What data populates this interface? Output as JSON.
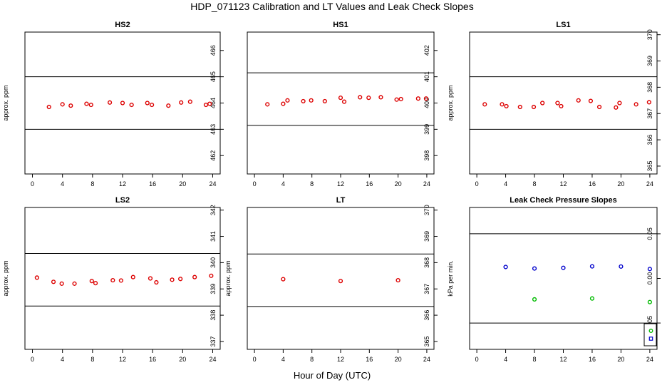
{
  "figure": {
    "title": "HDP_071123  Calibration and LT Values and Leak Check Slopes",
    "xlabel": "Hour of Day (UTC)"
  },
  "colors": {
    "primary": "#dd0000",
    "blue": "#0000cc",
    "green": "#00bb00",
    "line": "#000000"
  },
  "chart_data": [
    {
      "type": "scatter",
      "title": "HS2",
      "ylabel": "approx. ppm",
      "xlim": [
        -1,
        25
      ],
      "xticks": [
        0,
        4,
        8,
        12,
        16,
        20,
        24
      ],
      "ylim": [
        461.3,
        466.7
      ],
      "yticks": [
        462,
        463,
        464,
        465,
        466
      ],
      "hlines": [
        463.0,
        465.0
      ],
      "series": [
        {
          "color": "#dd0000",
          "marker": "circle",
          "x": [
            2.2,
            4.0,
            5.1,
            7.2,
            7.8,
            10.3,
            12.0,
            13.2,
            15.3,
            15.9,
            18.1,
            19.8,
            21.0,
            23.1,
            23.6
          ],
          "y": [
            463.85,
            463.95,
            463.9,
            463.97,
            463.93,
            464.02,
            464.0,
            463.93,
            464.0,
            463.93,
            463.9,
            464.02,
            464.05,
            463.93,
            463.97
          ]
        }
      ]
    },
    {
      "type": "scatter",
      "title": "HS1",
      "ylabel": "",
      "xlim": [
        -1,
        25
      ],
      "xticks": [
        0,
        4,
        8,
        12,
        16,
        20,
        24
      ],
      "ylim": [
        397.3,
        402.7
      ],
      "yticks": [
        398,
        399,
        400,
        401,
        402
      ],
      "hlines": [
        399.15,
        401.15
      ],
      "series": [
        {
          "color": "#dd0000",
          "marker": "circle",
          "x": [
            1.8,
            4.0,
            4.6,
            6.8,
            7.9,
            9.8,
            12.0,
            12.5,
            14.7,
            15.9,
            17.6,
            19.8,
            20.4,
            22.8,
            23.9
          ],
          "y": [
            399.95,
            399.97,
            400.1,
            400.07,
            400.1,
            400.07,
            400.2,
            400.05,
            400.22,
            400.2,
            400.22,
            400.13,
            400.15,
            400.17,
            400.17
          ]
        }
      ]
    },
    {
      "type": "scatter",
      "title": "LS1",
      "ylabel": "approx. ppm",
      "xlim": [
        -1,
        25
      ],
      "xticks": [
        0,
        4,
        8,
        12,
        16,
        20,
        24
      ],
      "ylim": [
        364.7,
        370.1
      ],
      "yticks": [
        365,
        366,
        367,
        368,
        369,
        370
      ],
      "hlines": [
        366.4,
        368.4
      ],
      "series": [
        {
          "color": "#dd0000",
          "marker": "circle",
          "x": [
            1.1,
            3.5,
            4.1,
            6.0,
            7.9,
            9.1,
            11.2,
            11.7,
            14.1,
            15.8,
            17.0,
            19.3,
            19.8,
            22.1,
            23.9
          ],
          "y": [
            367.35,
            367.35,
            367.28,
            367.25,
            367.25,
            367.4,
            367.4,
            367.28,
            367.5,
            367.48,
            367.25,
            367.23,
            367.4,
            367.35,
            367.43
          ]
        }
      ]
    },
    {
      "type": "scatter",
      "title": "LS2",
      "ylabel": "approx. ppm",
      "xlim": [
        -1,
        25
      ],
      "xticks": [
        0,
        4,
        8,
        12,
        16,
        20,
        24
      ],
      "ylim": [
        336.7,
        342.1
      ],
      "yticks": [
        337,
        338,
        339,
        340,
        341,
        342
      ],
      "hlines": [
        338.35,
        340.35
      ],
      "series": [
        {
          "color": "#dd0000",
          "marker": "circle",
          "x": [
            0.6,
            2.8,
            3.9,
            5.6,
            7.9,
            8.4,
            10.7,
            11.8,
            13.4,
            15.7,
            16.5,
            18.6,
            19.7,
            21.6,
            23.8
          ],
          "y": [
            339.43,
            339.27,
            339.2,
            339.2,
            339.3,
            339.22,
            339.33,
            339.32,
            339.45,
            339.4,
            339.25,
            339.35,
            339.38,
            339.45,
            339.5
          ]
        }
      ]
    },
    {
      "type": "scatter",
      "title": "LT",
      "ylabel": "approx. ppm",
      "xlim": [
        -1,
        25
      ],
      "xticks": [
        0,
        4,
        8,
        12,
        16,
        20,
        24
      ],
      "ylim": [
        364.7,
        370.1
      ],
      "yticks": [
        365,
        366,
        367,
        368,
        369,
        370
      ],
      "hlines": [
        366.33,
        368.33
      ],
      "series": [
        {
          "color": "#dd0000",
          "marker": "circle",
          "x": [
            4.0,
            12.0,
            20.0
          ],
          "y": [
            367.37,
            367.3,
            367.33
          ]
        }
      ]
    },
    {
      "type": "scatter",
      "title": "Leak Check Pressure Slopes",
      "ylabel": "kPa per min.",
      "xlim": [
        -1,
        25
      ],
      "xticks": [
        0,
        4,
        8,
        12,
        16,
        20,
        24
      ],
      "ylim": [
        -0.0795,
        0.0795
      ],
      "yticks": [
        -0.05,
        0.0,
        0.05
      ],
      "yticklabels": [
        "-0.05",
        "0.00",
        "0.05"
      ],
      "hlines": [
        -0.05,
        0.05
      ],
      "series": [
        {
          "color": "#0000cc",
          "marker": "circle",
          "x": [
            4,
            8,
            12,
            16,
            20,
            24
          ],
          "y": [
            0.0128,
            0.0111,
            0.0118,
            0.0135,
            0.0133,
            0.0105
          ]
        },
        {
          "color": "#00bb00",
          "marker": "circle",
          "x": [
            8,
            16,
            24
          ],
          "y": [
            -0.0235,
            -0.0225,
            -0.0265
          ]
        }
      ],
      "legend": {
        "position": "bottom-right",
        "entries": [
          {
            "color": "#00bb00",
            "marker": "circle"
          },
          {
            "color": "#0000cc",
            "marker": "square"
          }
        ]
      }
    }
  ]
}
